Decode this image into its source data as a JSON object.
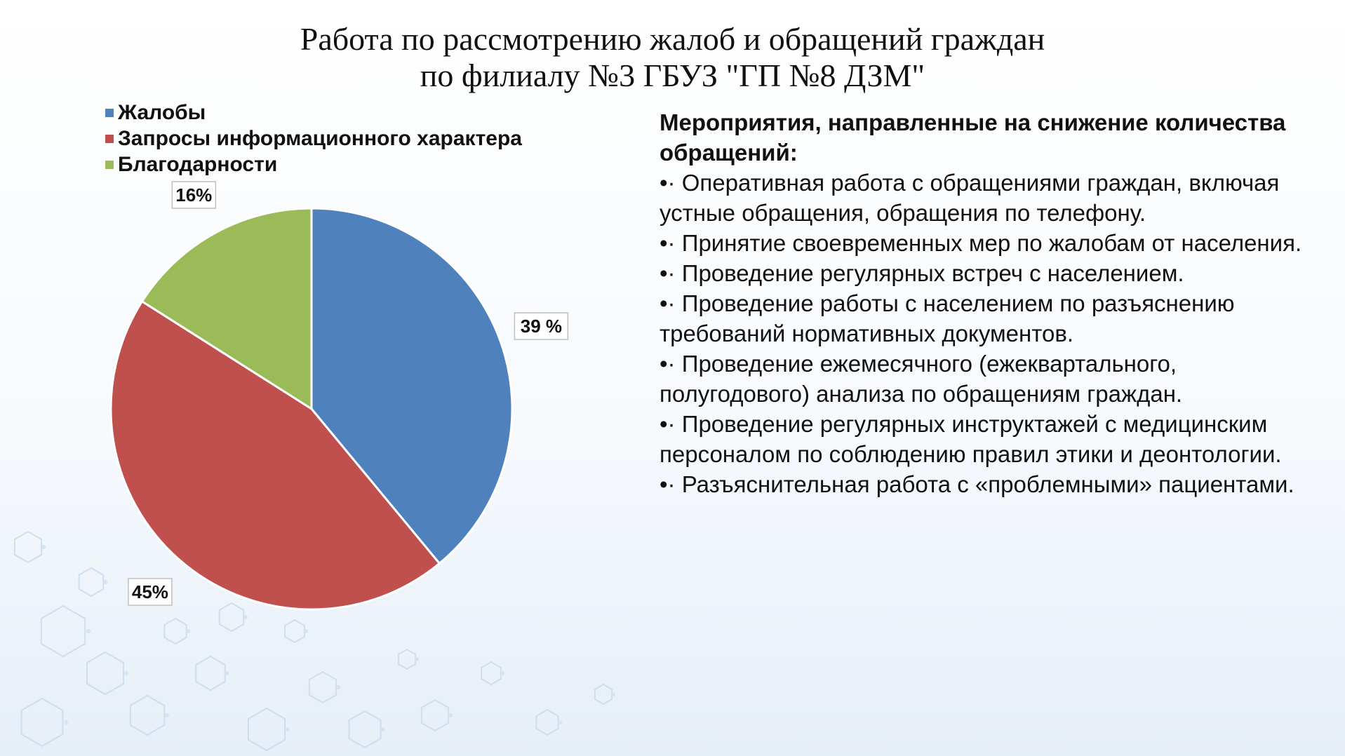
{
  "title": {
    "line1": "Работа по рассмотрению жалоб и обращений граждан",
    "line2": "по филиалу №3 ГБУЗ \"ГП №8 ДЗМ\""
  },
  "chart_data": {
    "type": "pie",
    "categories": [
      "Жалобы",
      "Запросы информационного характера",
      "Благодарности"
    ],
    "values": [
      39,
      45,
      16
    ],
    "data_labels": [
      "39 %",
      "45%",
      "16%"
    ],
    "colors": [
      "#4f81bd",
      "#c0504d",
      "#9bbb59"
    ],
    "legend_position": "top-left"
  },
  "panel": {
    "heading": "Мероприятия, направленные на снижение количества обращений:",
    "bullet": "•·",
    "items": [
      "Оперативная работа с обращениями граждан, включая устные обращения, обращения по телефону.",
      "Принятие своевременных мер по жалобам от населения.",
      "Проведение регулярных встреч с населением.",
      "Проведение работы с населением по разъяснению требований нормативных документов.",
      "Проведение ежемесячного (ежеквартального, полугодового) анализа по обращениям граждан.",
      "Проведение регулярных инструктажей с медицинским персоналом по соблюдению правил этики и деонтологии.",
      "Разъяснительная работа с «проблемными» пациентами."
    ]
  }
}
